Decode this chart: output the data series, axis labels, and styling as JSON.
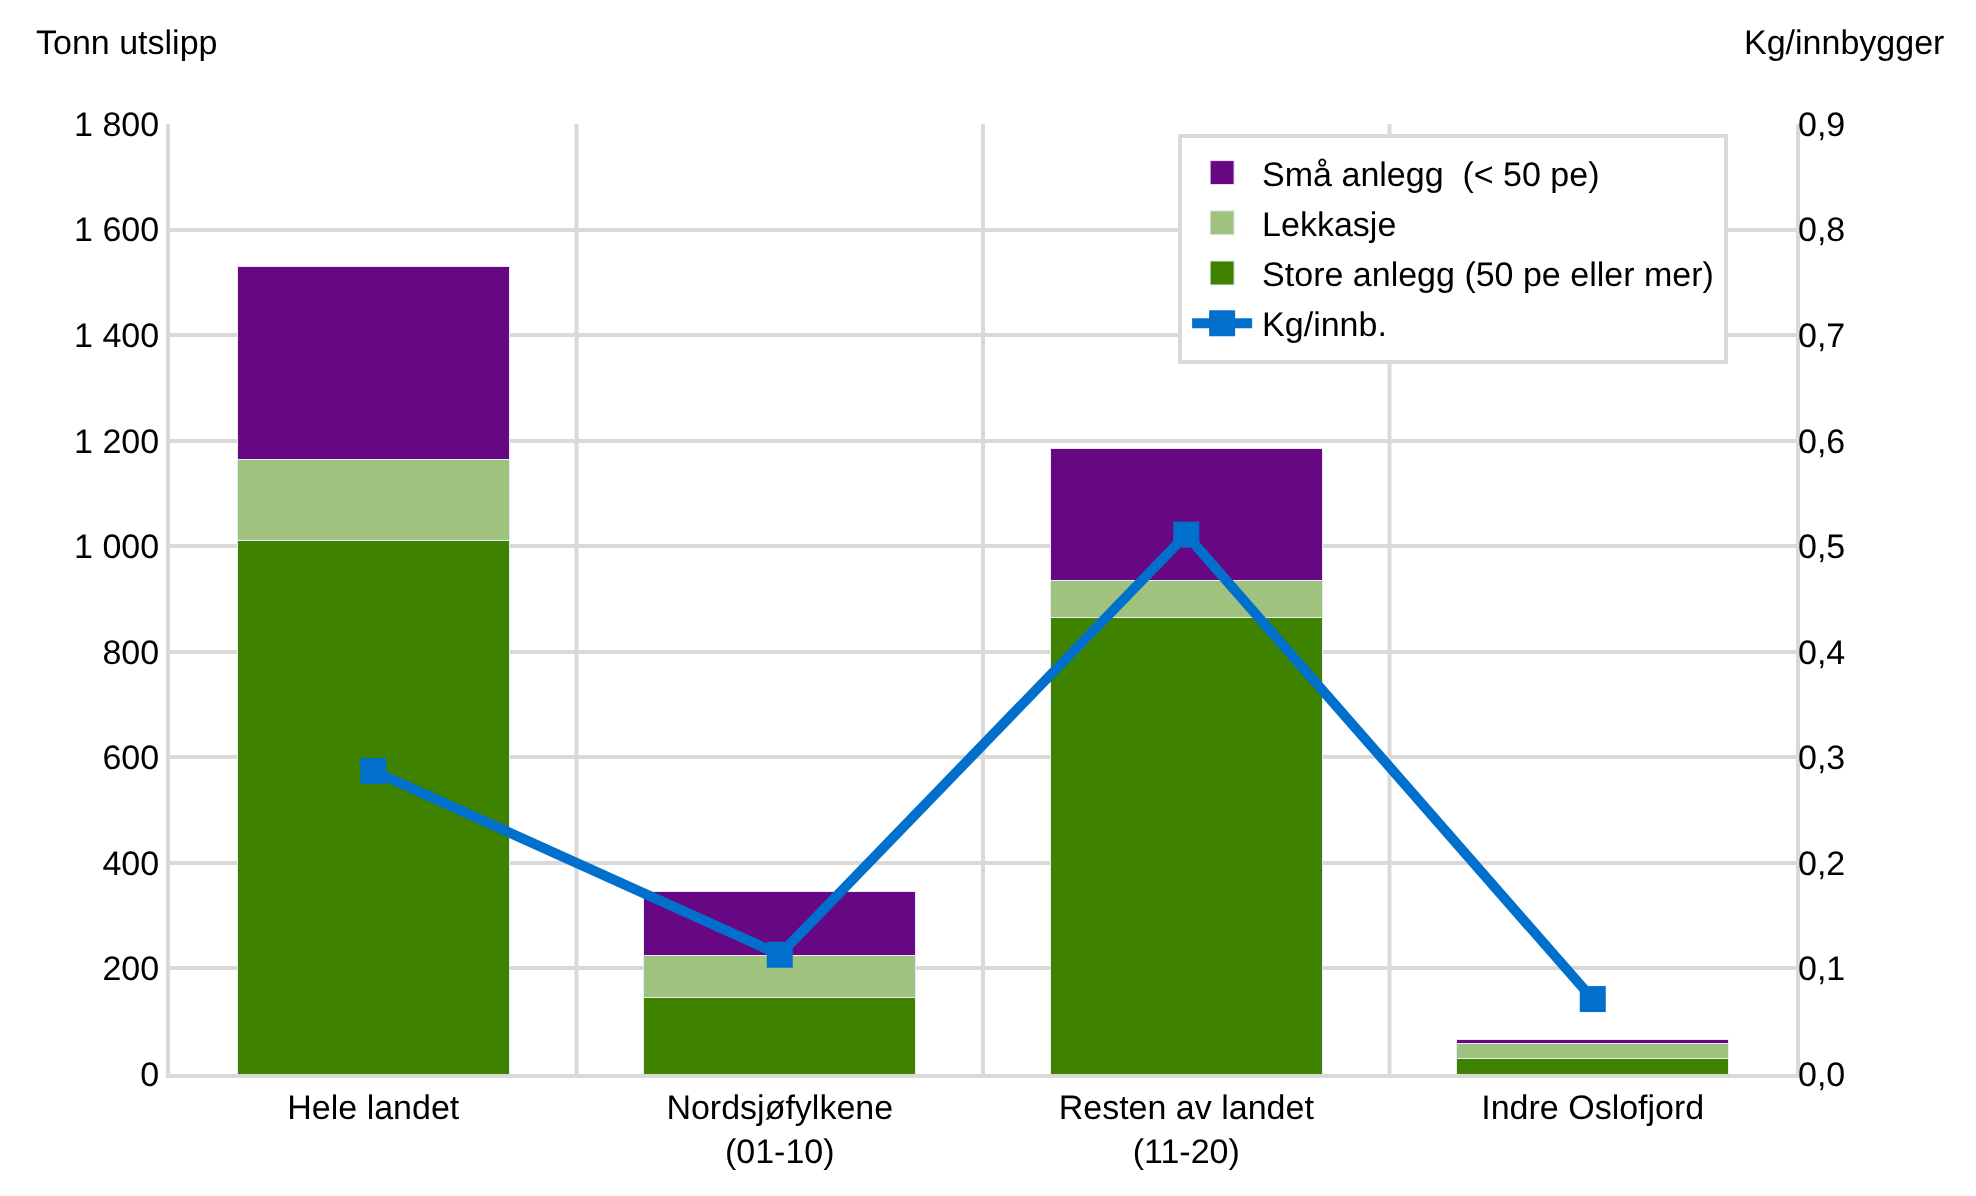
{
  "chart_data": {
    "type": "bar",
    "stacked": true,
    "ylabel": "Tonn utslipp",
    "y2label": "Kg/innbygger",
    "categories": [
      "Hele landet",
      "Nordsjøfylkene\n(01-10)",
      "Resten av landet\n(11-20)",
      "Indre Oslofjord"
    ],
    "series": [
      {
        "name": "Store anlegg (50 pe eller mer)",
        "color": "#3f8200",
        "values": [
          1010,
          145,
          865,
          30
        ]
      },
      {
        "name": "Lekkasje",
        "color": "#9fc37f",
        "values": [
          155,
          80,
          70,
          27
        ]
      },
      {
        "name": "Små anlegg  (< 50 pe)",
        "color": "#680783",
        "values": [
          365,
          120,
          250,
          8
        ]
      },
      {
        "name": "Kg/innb.",
        "color": "#0070cc",
        "type": "line",
        "axis": "y2",
        "marker": "square",
        "values": [
          0.287,
          0.113,
          0.511,
          0.071
        ]
      }
    ],
    "ylim": [
      0,
      1800
    ],
    "yticks": [
      {
        "value": 0,
        "label": "0"
      },
      {
        "value": 200,
        "label": "200"
      },
      {
        "value": 400,
        "label": "400"
      },
      {
        "value": 600,
        "label": "600"
      },
      {
        "value": 800,
        "label": "800"
      },
      {
        "value": 1000,
        "label": "1 000"
      },
      {
        "value": 1200,
        "label": "1 200"
      },
      {
        "value": 1400,
        "label": "1 400"
      },
      {
        "value": 1600,
        "label": "1 600"
      },
      {
        "value": 1800,
        "label": "1 800"
      }
    ],
    "y2lim": [
      0,
      0.9
    ],
    "y2ticks": [
      {
        "value": 0,
        "label": "0,0"
      },
      {
        "value": 0.1,
        "label": "0,1"
      },
      {
        "value": 0.2,
        "label": "0,2"
      },
      {
        "value": 0.3,
        "label": "0,3"
      },
      {
        "value": 0.4,
        "label": "0,4"
      },
      {
        "value": 0.5,
        "label": "0,5"
      },
      {
        "value": 0.6,
        "label": "0,6"
      },
      {
        "value": 0.7,
        "label": "0,7"
      },
      {
        "value": 0.8,
        "label": "0,8"
      },
      {
        "value": 0.9,
        "label": "0,9"
      }
    ],
    "grid": true,
    "legend": "top right"
  }
}
